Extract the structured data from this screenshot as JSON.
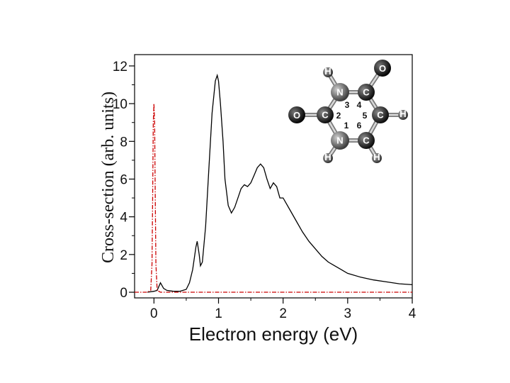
{
  "chart_data": {
    "type": "line",
    "xlabel": "Electron energy (eV)",
    "ylabel": "Cross-section (arb. units)",
    "xlim": [
      -0.3,
      4
    ],
    "ylim": [
      -0.3,
      12.6
    ],
    "x_ticks": [
      "0",
      "1",
      "2",
      "3",
      "4"
    ],
    "y_ticks": [
      "0",
      "2",
      "4",
      "6",
      "8",
      "10",
      "12"
    ],
    "grid": false,
    "legend": "none",
    "series": [
      {
        "style": "solid",
        "color": "#000000",
        "x": [
          -0.1,
          0.0,
          0.05,
          0.1,
          0.15,
          0.2,
          0.3,
          0.4,
          0.5,
          0.55,
          0.6,
          0.65,
          0.67,
          0.7,
          0.72,
          0.75,
          0.8,
          0.85,
          0.9,
          0.95,
          0.98,
          1.0,
          1.03,
          1.07,
          1.1,
          1.15,
          1.2,
          1.25,
          1.3,
          1.35,
          1.4,
          1.45,
          1.5,
          1.55,
          1.6,
          1.65,
          1.7,
          1.75,
          1.8,
          1.85,
          1.9,
          1.95,
          2.0,
          2.1,
          2.2,
          2.3,
          2.4,
          2.5,
          2.6,
          2.7,
          2.8,
          2.9,
          3.0,
          3.2,
          3.4,
          3.6,
          3.8,
          4.0
        ],
        "y": [
          0.0,
          0.05,
          0.1,
          0.5,
          0.2,
          0.1,
          0.05,
          0.05,
          0.15,
          0.5,
          1.2,
          2.4,
          2.7,
          2.0,
          1.4,
          1.6,
          3.5,
          6.5,
          9.5,
          11.2,
          11.5,
          11.2,
          10.0,
          8.0,
          6.0,
          4.6,
          4.2,
          4.5,
          5.0,
          5.5,
          5.7,
          5.6,
          5.8,
          6.2,
          6.6,
          6.8,
          6.6,
          6.0,
          5.5,
          5.8,
          5.6,
          5.0,
          5.0,
          4.4,
          3.8,
          3.2,
          2.7,
          2.3,
          1.9,
          1.6,
          1.4,
          1.2,
          1.0,
          0.8,
          0.65,
          0.55,
          0.45,
          0.4
        ]
      },
      {
        "style": "dash-dot",
        "color": "#cc0000",
        "x": [
          -0.3,
          -0.1,
          -0.05,
          -0.03,
          -0.02,
          -0.01,
          0.0,
          0.01,
          0.02,
          0.03,
          0.05,
          0.1,
          0.2,
          0.5,
          1.0,
          2.0,
          3.0,
          4.0
        ],
        "y": [
          0.0,
          0.0,
          0.1,
          1.5,
          5.0,
          9.0,
          10.0,
          9.0,
          5.0,
          1.5,
          0.1,
          0.0,
          0.0,
          0.0,
          0.0,
          0.0,
          0.0,
          0.0
        ]
      }
    ]
  },
  "inset": {
    "atoms": [
      {
        "symbol": "N",
        "number": "3"
      },
      {
        "symbol": "C",
        "number": "4"
      },
      {
        "symbol": "C",
        "number": "2"
      },
      {
        "symbol": "C",
        "number": "5"
      },
      {
        "symbol": "N",
        "number": "1"
      },
      {
        "symbol": "C",
        "number": "6"
      },
      {
        "symbol": "O",
        "number": ""
      },
      {
        "symbol": "O",
        "number": ""
      },
      {
        "symbol": "H",
        "number": ""
      },
      {
        "symbol": "H",
        "number": ""
      },
      {
        "symbol": "H",
        "number": ""
      },
      {
        "symbol": "H",
        "number": ""
      }
    ]
  }
}
